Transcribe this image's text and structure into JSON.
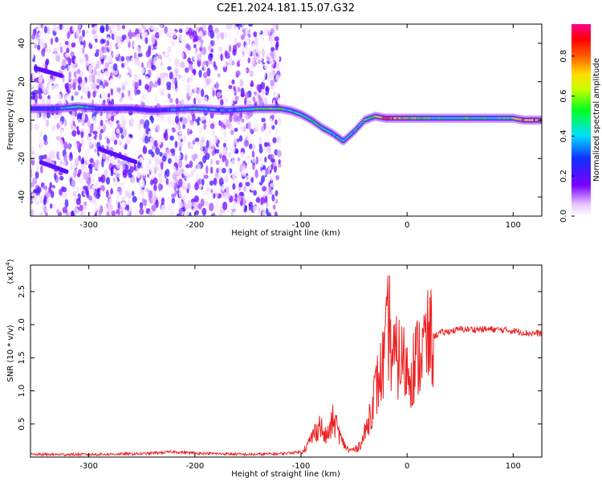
{
  "title": "C2E1.2024.181.15.07.G32",
  "colors": {
    "axis": "#000000",
    "snr_line": "#ee2222",
    "background": "#ffffff"
  },
  "chart_data": [
    {
      "type": "heatmap",
      "title": "C2E1.2024.181.15.07.G32",
      "xlabel": "Height of straight line (km)",
      "ylabel": "Frequency (Hz)",
      "xlim": [
        -355,
        127
      ],
      "ylim": [
        -50,
        50
      ],
      "xticks": [
        -300,
        -200,
        -100,
        0,
        100
      ],
      "yticks": [
        -40,
        -20,
        0,
        20,
        40
      ],
      "colorbar": {
        "label": "Normalized spectral amplitude",
        "range": [
          0,
          0.96
        ],
        "ticks": [
          "0.0",
          "0.2",
          "0.4",
          "0.6",
          "0.8"
        ],
        "tick_values": [
          0,
          0.2,
          0.4,
          0.6,
          0.8
        ],
        "colormap": "rainbow (white-violet-blue-cyan-green-yellow-orange-red-magenta)"
      },
      "noise_region_x": [
        -355,
        -120
      ],
      "main_trace": {
        "x": [
          -355,
          -330,
          -310,
          -290,
          -260,
          -240,
          -200,
          -170,
          -140,
          -120,
          -110,
          -100,
          -90,
          -80,
          -70,
          -60,
          -50,
          -40,
          -30,
          -20,
          -10,
          0,
          20,
          50,
          80,
          100,
          110,
          127
        ],
        "frequency": [
          6,
          6,
          7,
          6,
          6,
          5,
          6,
          5,
          6,
          6,
          5,
          3,
          0,
          -4,
          -7,
          -11,
          -6,
          0,
          2,
          1,
          1,
          1,
          1,
          1,
          1,
          1,
          0,
          0
        ],
        "amplitude": [
          0.25,
          0.35,
          0.55,
          0.3,
          0.3,
          0.25,
          0.5,
          0.35,
          0.6,
          0.55,
          0.5,
          0.55,
          0.5,
          0.55,
          0.5,
          0.5,
          0.5,
          0.55,
          0.65,
          0.85,
          0.8,
          0.7,
          0.55,
          0.55,
          0.55,
          0.55,
          0.9,
          0.8
        ]
      },
      "secondary_traces": [
        {
          "x": [
            -350,
            -325
          ],
          "frequency": [
            27,
            23
          ]
        },
        {
          "x": [
            -345,
            -320
          ],
          "frequency": [
            -22,
            -27
          ]
        },
        {
          "x": [
            -290,
            -255
          ],
          "frequency": [
            -15,
            -22
          ]
        }
      ]
    },
    {
      "type": "line",
      "xlabel": "Height of straight line (km)",
      "ylabel": "SNR (10 * v/v)",
      "y_scale_label": "(x10",
      "y_scale_exponent": "4",
      "xlim": [
        -355,
        127
      ],
      "ylim": [
        0,
        2.9
      ],
      "xticks": [
        -300,
        -200,
        -100,
        0,
        100
      ],
      "yticks": [
        0.5,
        1.0,
        1.5,
        2.0,
        2.5
      ],
      "ytick_labels": [
        "0.5",
        "1.0",
        "1.5",
        "2.0",
        "2.5"
      ],
      "series": [
        {
          "x": [
            -355,
            -300,
            -250,
            -220,
            -200,
            -150,
            -120,
            -100,
            -95,
            -88,
            -82,
            -78,
            -74,
            -70,
            -66,
            -62,
            -55,
            -48,
            -42,
            -38,
            -33,
            -28,
            -24,
            -20,
            -17,
            -15,
            -12,
            -8,
            -4,
            0,
            5,
            10,
            15,
            20,
            25,
            30,
            40,
            50,
            60,
            80,
            100,
            115,
            127
          ],
          "y": [
            0.04,
            0.04,
            0.05,
            0.08,
            0.06,
            0.04,
            0.05,
            0.08,
            0.15,
            0.35,
            0.5,
            0.3,
            0.35,
            0.55,
            0.45,
            0.25,
            0.1,
            0.12,
            0.25,
            0.45,
            0.8,
            1.1,
            1.3,
            1.6,
            2.1,
            1.6,
            1.45,
            1.5,
            1.45,
            1.3,
            1.35,
            1.5,
            1.65,
            1.75,
            1.82,
            1.87,
            1.9,
            1.93,
            1.93,
            1.93,
            1.91,
            1.87,
            1.87
          ]
        }
      ]
    }
  ]
}
